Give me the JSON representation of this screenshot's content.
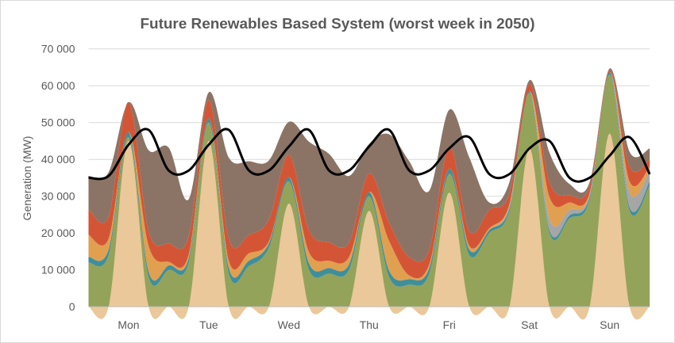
{
  "chart_data": {
    "type": "area",
    "title": "Future Renewables Based System (worst week  in 2050)",
    "ylabel": "Generation (MW)",
    "xlabel": "",
    "ylim": [
      0,
      70000
    ],
    "yticks": [
      0,
      10000,
      20000,
      30000,
      40000,
      50000,
      60000,
      70000
    ],
    "ytick_labels": [
      "0",
      "10 000",
      "20 000",
      "30 000",
      "40 000",
      "50 000",
      "60 000",
      "70 000"
    ],
    "grid": true,
    "legend": "none",
    "x_hours": [
      0,
      6,
      12,
      18,
      24,
      30,
      36,
      42,
      48,
      54,
      60,
      66,
      72,
      78,
      84,
      90,
      96,
      102,
      108,
      114,
      120,
      126,
      132,
      138,
      144,
      150,
      156,
      162,
      168
    ],
    "days": [
      "Mon",
      "Tue",
      "Wed",
      "Thu",
      "Fri",
      "Sat",
      "Sun"
    ],
    "stacked_series": [
      {
        "name": "layer-base",
        "color": "#94a35a",
        "values": [
          12000,
          14000,
          46000,
          8000,
          10000,
          12000,
          50000,
          9000,
          11000,
          16000,
          34000,
          10000,
          9000,
          10000,
          30000,
          8000,
          6000,
          9000,
          36000,
          14000,
          20000,
          26000,
          58000,
          20000,
          24000,
          29000,
          63000,
          26000,
          33000
        ]
      },
      {
        "name": "layer-teal",
        "color": "#3f8f9a",
        "values": [
          1500,
          1500,
          1500,
          1500,
          1200,
          1200,
          1200,
          1500,
          1500,
          1200,
          1200,
          1800,
          1500,
          1500,
          1200,
          1800,
          1500,
          1500,
          1500,
          1500,
          800,
          800,
          500,
          800,
          800,
          800,
          700,
          1000,
          1000
        ]
      },
      {
        "name": "layer-grey",
        "color": "#a6a6a6",
        "values": [
          0,
          0,
          0,
          0,
          0,
          0,
          0,
          0,
          0,
          0,
          0,
          0,
          0,
          0,
          0,
          0,
          0,
          0,
          0,
          0,
          0,
          500,
          0,
          3000,
          1500,
          500,
          0,
          4000,
          3000
        ]
      },
      {
        "name": "layer-orange",
        "color": "#e0a050",
        "values": [
          6000,
          3000,
          0,
          7000,
          1000,
          1000,
          0,
          2000,
          2000,
          500,
          0,
          3000,
          2000,
          2000,
          0,
          8000,
          1000,
          1000,
          0,
          1000,
          500,
          500,
          0,
          6000,
          2000,
          500,
          0,
          3000,
          1000
        ]
      },
      {
        "name": "layer-red",
        "color": "#d45535",
        "values": [
          7000,
          6000,
          8000,
          4000,
          5000,
          5000,
          5000,
          6000,
          5000,
          6000,
          6000,
          6000,
          5000,
          4000,
          5000,
          5000,
          5000,
          4000,
          6000,
          4000,
          5000,
          3000,
          2000,
          4000,
          2000,
          2000,
          500,
          4000,
          2000
        ]
      },
      {
        "name": "layer-brown",
        "color": "#8b7466",
        "values": [
          9000,
          12000,
          0,
          22000,
          26000,
          10000,
          2000,
          22000,
          20000,
          16000,
          9000,
          24000,
          24000,
          18000,
          8000,
          24000,
          26000,
          16000,
          10000,
          20000,
          2000,
          3000,
          1000,
          8000,
          3000,
          1000,
          500,
          4000,
          3000
        ]
      }
    ],
    "solar_series": {
      "name": "layer-solar",
      "color": "#eac89a",
      "values": [
        0,
        0,
        45000,
        0,
        0,
        0,
        45000,
        0,
        0,
        0,
        28000,
        0,
        0,
        0,
        26000,
        0,
        0,
        0,
        31000,
        0,
        0,
        0,
        43000,
        0,
        0,
        0,
        47000,
        0,
        0
      ]
    },
    "demand_series": {
      "name": "demand",
      "color": "#000000",
      "values": [
        35000,
        35500,
        44000,
        48000,
        37000,
        37000,
        44000,
        48000,
        37000,
        37000,
        43500,
        48000,
        37000,
        37000,
        43500,
        48000,
        37000,
        37000,
        43000,
        46000,
        36000,
        36000,
        43000,
        45000,
        35000,
        35000,
        41000,
        46000,
        36000
      ]
    }
  }
}
